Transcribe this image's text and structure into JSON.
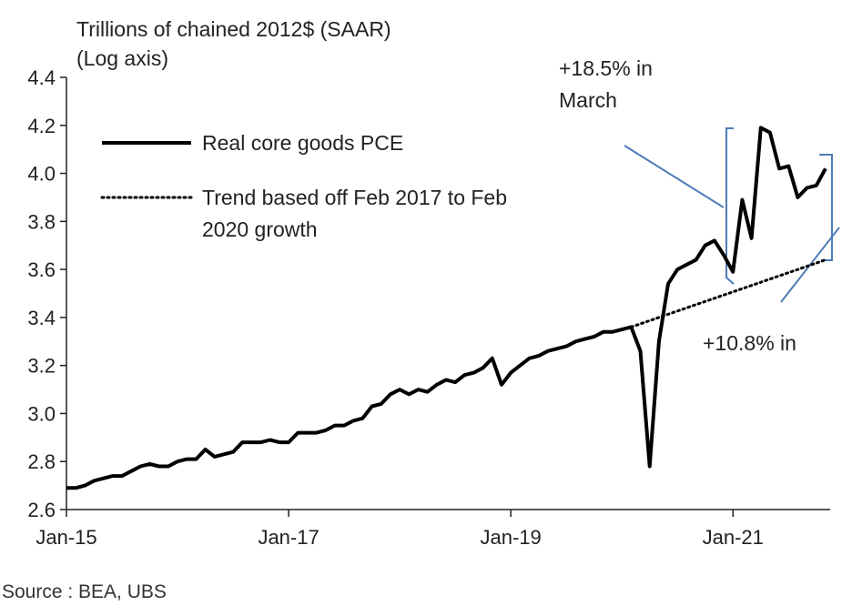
{
  "chart_data": {
    "type": "line",
    "ylabel_line1": "Trillions  of chained 2012$ (SAAR)",
    "ylabel_line2": "(Log axis)",
    "log_scale": true,
    "ylim": [
      2.6,
      4.4
    ],
    "y_ticks": [
      "4.4",
      "4.2",
      "4.0",
      "3.8",
      "3.6",
      "3.4",
      "3.2",
      "3.0",
      "2.8",
      "2.6"
    ],
    "x_ticks": [
      "Jan-15",
      "Jan-17",
      "Jan-19",
      "Jan-21"
    ],
    "grid": false,
    "legend_position": "upper-left",
    "series": [
      {
        "name": "Real core goods PCE",
        "style": "solid",
        "color": "#000000",
        "points": [
          [
            "2015-01",
            2.69
          ],
          [
            "2015-02",
            2.69
          ],
          [
            "2015-03",
            2.7
          ],
          [
            "2015-04",
            2.72
          ],
          [
            "2015-05",
            2.73
          ],
          [
            "2015-06",
            2.74
          ],
          [
            "2015-07",
            2.74
          ],
          [
            "2015-08",
            2.76
          ],
          [
            "2015-09",
            2.78
          ],
          [
            "2015-10",
            2.79
          ],
          [
            "2015-11",
            2.78
          ],
          [
            "2015-12",
            2.78
          ],
          [
            "2016-01",
            2.8
          ],
          [
            "2016-02",
            2.81
          ],
          [
            "2016-03",
            2.81
          ],
          [
            "2016-04",
            2.85
          ],
          [
            "2016-05",
            2.82
          ],
          [
            "2016-06",
            2.83
          ],
          [
            "2016-07",
            2.84
          ],
          [
            "2016-08",
            2.88
          ],
          [
            "2016-09",
            2.88
          ],
          [
            "2016-10",
            2.88
          ],
          [
            "2016-11",
            2.89
          ],
          [
            "2016-12",
            2.88
          ],
          [
            "2017-01",
            2.88
          ],
          [
            "2017-02",
            2.92
          ],
          [
            "2017-03",
            2.92
          ],
          [
            "2017-04",
            2.92
          ],
          [
            "2017-05",
            2.93
          ],
          [
            "2017-06",
            2.95
          ],
          [
            "2017-07",
            2.95
          ],
          [
            "2017-08",
            2.97
          ],
          [
            "2017-09",
            2.98
          ],
          [
            "2017-10",
            3.03
          ],
          [
            "2017-11",
            3.04
          ],
          [
            "2017-12",
            3.08
          ],
          [
            "2018-01",
            3.1
          ],
          [
            "2018-02",
            3.08
          ],
          [
            "2018-03",
            3.1
          ],
          [
            "2018-04",
            3.09
          ],
          [
            "2018-05",
            3.12
          ],
          [
            "2018-06",
            3.14
          ],
          [
            "2018-07",
            3.13
          ],
          [
            "2018-08",
            3.16
          ],
          [
            "2018-09",
            3.17
          ],
          [
            "2018-10",
            3.19
          ],
          [
            "2018-11",
            3.23
          ],
          [
            "2018-12",
            3.12
          ],
          [
            "2019-01",
            3.17
          ],
          [
            "2019-02",
            3.2
          ],
          [
            "2019-03",
            3.23
          ],
          [
            "2019-04",
            3.24
          ],
          [
            "2019-05",
            3.26
          ],
          [
            "2019-06",
            3.27
          ],
          [
            "2019-07",
            3.28
          ],
          [
            "2019-08",
            3.3
          ],
          [
            "2019-09",
            3.31
          ],
          [
            "2019-10",
            3.32
          ],
          [
            "2019-11",
            3.34
          ],
          [
            "2019-12",
            3.34
          ],
          [
            "2020-01",
            3.35
          ],
          [
            "2020-02",
            3.36
          ],
          [
            "2020-03",
            3.26
          ],
          [
            "2020-04",
            2.78
          ],
          [
            "2020-05",
            3.3
          ],
          [
            "2020-06",
            3.54
          ],
          [
            "2020-07",
            3.6
          ],
          [
            "2020-08",
            3.62
          ],
          [
            "2020-09",
            3.64
          ],
          [
            "2020-10",
            3.7
          ],
          [
            "2020-11",
            3.72
          ],
          [
            "2020-12",
            3.66
          ],
          [
            "2021-01",
            3.59
          ],
          [
            "2021-02",
            3.89
          ],
          [
            "2021-03",
            3.73
          ],
          [
            "2021-04",
            4.19
          ],
          [
            "2021-05",
            4.17
          ],
          [
            "2021-06",
            4.02
          ],
          [
            "2021-07",
            4.03
          ],
          [
            "2021-08",
            3.9
          ],
          [
            "2021-09",
            3.94
          ],
          [
            "2021-10",
            3.95
          ],
          [
            "2021-11",
            4.02
          ]
        ]
      },
      {
        "name": "Trend based off Feb 2017 to Feb 2020 growth",
        "name_line1": "Trend based off Feb 2017 to Feb",
        "name_line2": "2020 growth",
        "style": "dotted",
        "color": "#000000",
        "points": [
          [
            "2020-02",
            3.36
          ],
          [
            "2021-11",
            3.64
          ]
        ]
      }
    ],
    "annotations": [
      {
        "text_line1": "+18.5% in",
        "text_line2": "March"
      },
      {
        "text_line1": "+10.8% in",
        "text_line2": ""
      }
    ],
    "source": "Source : BEA, UBS"
  }
}
